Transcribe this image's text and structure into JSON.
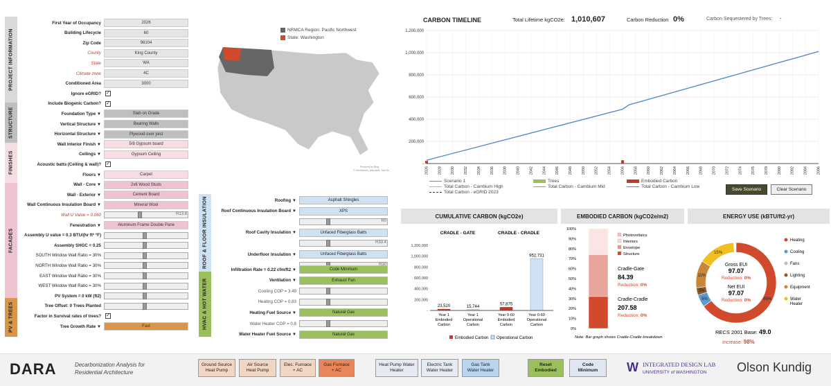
{
  "sections": {
    "project": "PROJECT INFORMATION",
    "structure": "STRUCTURE",
    "finishes": "FINISHES",
    "facades": "FACADES",
    "pv": "PV & TREES",
    "roof": "ROOF & FLOOR INSULATION",
    "hvac": "HVAC & HOT WATER"
  },
  "project": [
    {
      "label": "First Year of Occupancy",
      "value": "2026",
      "style": "bold"
    },
    {
      "label": "Building Lifecycle",
      "value": "60",
      "style": "bold"
    },
    {
      "label": "Zip Code",
      "value": "98104",
      "style": "bold"
    },
    {
      "label": "County",
      "value": "King County",
      "style": "red"
    },
    {
      "label": "State",
      "value": "WA",
      "style": "red"
    },
    {
      "label": "Climate zone",
      "value": "4C",
      "style": "red"
    },
    {
      "label": "Conditioned Area",
      "value": "3000",
      "style": "bold"
    }
  ],
  "ignore_egrid": "Ignore eGRID?",
  "biogenic": "Include Biogenic Carbon?",
  "check": "✓",
  "structure": [
    {
      "label": "Foundation Type ▼",
      "value": "Slab on Grade"
    },
    {
      "label": "Vertical Structure ▼",
      "value": "Bearing Walls"
    },
    {
      "label": "Horizontal Structure ▼",
      "value": "Plywood over joist"
    }
  ],
  "finishes": [
    {
      "label": "Wall Interior Finish ▼",
      "value": "5/8 Gypsum board"
    },
    {
      "label": "Ceilings ▼",
      "value": "Gypsum Ceiling"
    },
    {
      "label": "Acoustic batts (Ceiling & wall)?",
      "value": ""
    },
    {
      "label": "Floors ▼",
      "value": "Carpet"
    }
  ],
  "facades": [
    {
      "label": "Wall - Core ▼",
      "value": "2x6 Wood Studs"
    },
    {
      "label": "Wall - Exterior ▼",
      "value": "Cement Board"
    },
    {
      "label": "Wall Continuous Insulation Board ▼",
      "value": "Mineral Wool"
    }
  ],
  "wall_u": {
    "label": "Wall U Value = ",
    "val": "0.060",
    "r": "R13.8"
  },
  "fenestration": {
    "label": "Fenestration ▼",
    "value": "Aluminum Frame Double Pane"
  },
  "assembly_u": "Assembly U value = 0.3 BTU/(hr ft² °F)",
  "shgc": "Assembly SHGC = 0.25",
  "wwr": [
    "SOUTH Window Wall Ratio = 30%",
    "NORTH Window Wall Ratio = 30%",
    "EAST Window Wall Ratio = 30%",
    "WEST Window Wall Ratio = 30%"
  ],
  "pv": {
    "label": "PV System = 0 kW (ft2)",
    "trees": "Tree Offset: 0 Trees Planted",
    "survival": "Factor in Survival rates of trees?",
    "growth": "Tree Growth Rate ▼",
    "growth_val": "Fast"
  },
  "map": {
    "legend1": "NRMCA Region: Pacific Northwest",
    "legend2": "State: Washington",
    "credit": "Powered by Bing\n© GeoNames, Microsoft, TomTom"
  },
  "roof": [
    {
      "label": "Roofing ▼",
      "value": "Asphalt Shingles"
    },
    {
      "label": "Roof Continuous Insulation Board ▼",
      "value": "XPS"
    },
    {
      "label": "",
      "value": "R0"
    },
    {
      "label": "Roof Cavity Insulation ▼",
      "value": "Unfaced Fiberglass Batts"
    },
    {
      "label": "",
      "value": "R33.4"
    },
    {
      "label": "Underfloor Insulation ▼",
      "value": "Unfaced Fiberglass Batts"
    },
    {
      "label": "",
      "value": "R30"
    }
  ],
  "hvac": [
    {
      "label": "Infiltration Rate = 0.22 cfm/ft2 ▼",
      "value": "Code Minimum"
    },
    {
      "label": "Ventilation ▼",
      "value": "Exhaust Fan"
    },
    {
      "label": "Cooling COP = 3.49",
      "value": ""
    },
    {
      "label": "Heating COP = 0.83",
      "value": ""
    },
    {
      "label": "Heating Fuel Source ▼",
      "value": "Natural Gas"
    },
    {
      "label": "Water Heater COP = 0.8",
      "value": ""
    },
    {
      "label": "Water Heater Fuel Source ▼",
      "value": "Natural Gas"
    }
  ],
  "timeline": {
    "title": "CARBON TIMELINE",
    "lifetime_label": "Total Lifetime kgCO2e:",
    "lifetime_value": "1,010,607",
    "reduction_label": "Carbon Reduction",
    "reduction_value": "0%",
    "seq_label": "Carbon Sequestered by Trees:",
    "seq_value": "-",
    "yticks": [
      "1,200,000",
      "1,000,000",
      "800,000",
      "600,000",
      "400,000",
      "200,000",
      "-"
    ],
    "legend": [
      "Scenario 1",
      "Trees",
      "Embodied Carbon",
      "Total Carbon - Cambium High",
      "Total Carbon - Cambium Mid",
      "Total Carbon - Cambium Low",
      "Total Carbon - eGRID 2023"
    ],
    "save_btn": "Save Scenario",
    "clear_btn": "Clear Scenario"
  },
  "chart_data": [
    {
      "type": "line",
      "title": "CARBON TIMELINE",
      "x_start": 2026,
      "x_end": 2086,
      "ylim": [
        0,
        1200000
      ],
      "series": [
        {
          "name": "Total Carbon - Cambium Low",
          "x": [
            2026,
            2056,
            2057,
            2086
          ],
          "values": [
            30000,
            490000,
            530000,
            1010607
          ]
        }
      ],
      "embodied_bars": [
        {
          "x": 2026,
          "value": 23520
        },
        {
          "x": 2056,
          "value": 30000
        }
      ]
    },
    {
      "type": "bar",
      "title": "CUMULATIVE CARBON (kgCO2e)",
      "categories": [
        "Year 1 Embodied Carbon",
        "Year 1 Operational Carbon",
        "Year 0-60 Embodied Carbon",
        "Year 0-60 Operational Carbon"
      ],
      "values": [
        23520,
        15744,
        57875,
        952731
      ],
      "ylim": [
        0,
        1200000
      ],
      "yticks": [
        "1,200,000",
        "1,000,000",
        "800,000",
        "600,000",
        "400,000",
        "200,000",
        "-"
      ],
      "labels": [
        "23,520",
        "15,744",
        "57,875",
        "952,731"
      ],
      "groups": [
        "CRADLE - GATE",
        "CRADLE - CRADLE"
      ],
      "legend": [
        "Embodied Carbon",
        "Operational Carbon"
      ]
    },
    {
      "type": "bar",
      "title": "EMBODIED CARBON (kgCO2e/m2)",
      "categories": [
        "Photovoltaics",
        "Interiors",
        "Envelope",
        "Structure"
      ],
      "yticks": [
        "100%",
        "90%",
        "80%",
        "70%",
        "60%",
        "50%",
        "40%",
        "30%",
        "20%",
        "10%",
        "0%"
      ],
      "values_pct": [
        0,
        26,
        42,
        32
      ],
      "cradle_gate_label": "Cradle-Gate",
      "cradle_gate": "84.39",
      "cradle_cradle_label": "Cradle-Cradle",
      "cradle_cradle": "207.58",
      "reduction_label": "Reduction:",
      "reduction": "0%",
      "note": "Note: Bar graph shows Cradle-Cradle breakdown"
    },
    {
      "type": "pie",
      "title": "ENERGY USE (kBTU/ft2-yr)",
      "slices": [
        {
          "name": "Heating",
          "pct": 65,
          "color": "#d24a2c"
        },
        {
          "name": "Cooling",
          "pct": 5,
          "color": "#5b9bd5"
        },
        {
          "name": "Fans",
          "pct": 0,
          "color": "#bbbbbb"
        },
        {
          "name": "Lighting",
          "pct": 3,
          "color": "#8b5a2b"
        },
        {
          "name": "Equipment",
          "pct": 11,
          "color": "#c8863b"
        },
        {
          "name": "Water Heater",
          "pct": 15,
          "color": "#f0c020"
        }
      ],
      "slice_labels": [
        "65%",
        "5%",
        "3%",
        "11%",
        "15%"
      ],
      "gross_label": "Gross EUI",
      "gross": "97.07",
      "net_label": "Net EUI",
      "net": "97.07",
      "reduction_label": "Reduction:",
      "reduction": "0%",
      "recs_label": "RECS 2001 Base:",
      "recs": "49.0",
      "increase_label": "Increase:",
      "increase": "98%"
    }
  ],
  "footer": {
    "logo": "DARA",
    "logo_sub1": "Decarbonization Analysis for",
    "logo_sub2": "Residential Architecture",
    "buttons": [
      "Ground Source\nHeat Pump",
      "Air Source\nHeat Pump",
      "Elec. Furnace\n+ AC",
      "Gas Furnace\n+ AC",
      "Heat Pump Water\nHeater",
      "Electric Tank\nWater Heater",
      "Gas Tank\nWater Heater",
      "Reset\nEmbodied",
      "Code\nMinimum"
    ],
    "idl": "INTEGRATED DESIGN LAB",
    "uw": "UNIVERSITY of WASHINGTON",
    "ok": "Olson Kundig"
  },
  "colors": {
    "accent_red": "#d24a2c",
    "blue_line": "#4a86c5",
    "pink": "#f2d0d7",
    "orange": "#d8964a",
    "green": "#9bbf5a",
    "lightblue": "#cfe2f3"
  }
}
